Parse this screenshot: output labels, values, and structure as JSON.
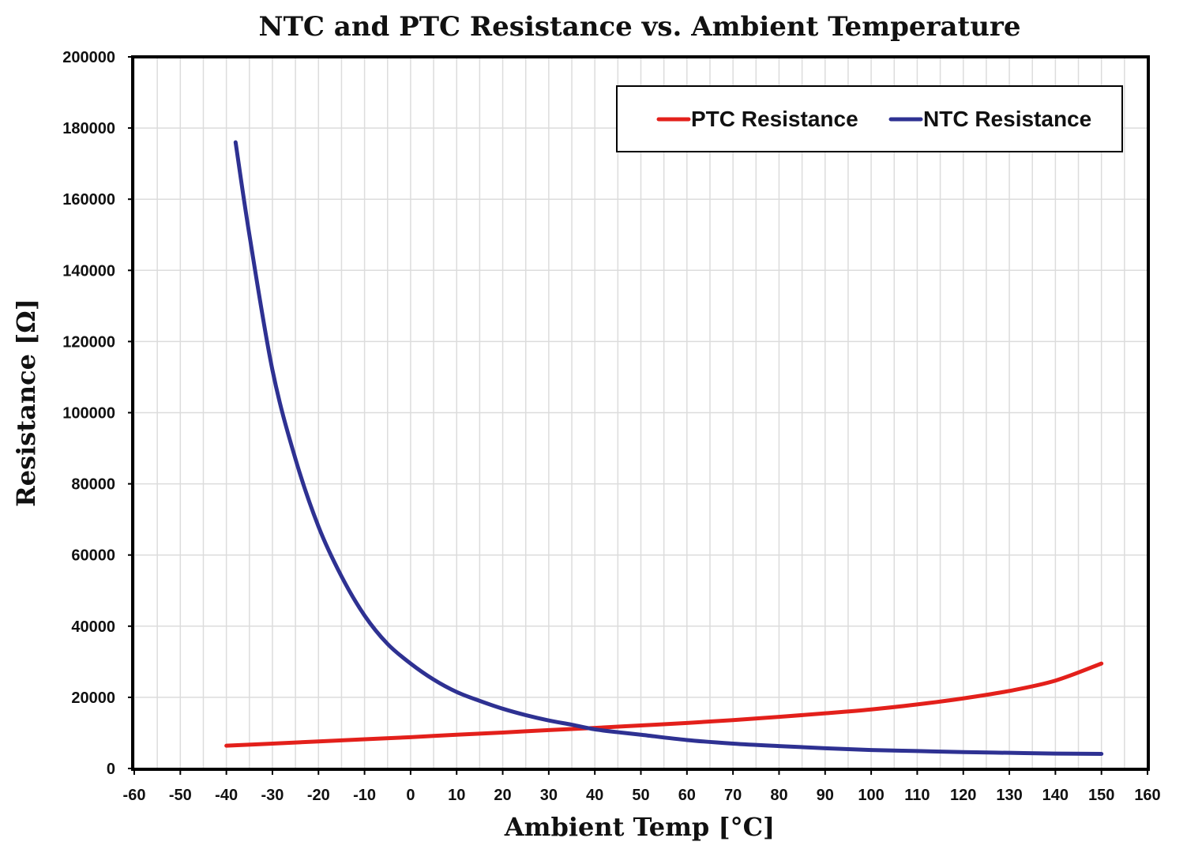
{
  "chart_data": {
    "type": "line",
    "title": "NTC and PTC Resistance vs. Ambient Temperature",
    "xlabel": "Ambient Temp [°C]",
    "ylabel": "Resistance [Ω]",
    "xlim": [
      -60,
      160
    ],
    "ylim": [
      0,
      200000
    ],
    "x_ticks": [
      -60,
      -50,
      -40,
      -30,
      -20,
      -10,
      0,
      10,
      20,
      30,
      40,
      50,
      60,
      70,
      80,
      90,
      100,
      110,
      120,
      130,
      140,
      150,
      160
    ],
    "y_ticks": [
      0,
      20000,
      40000,
      60000,
      80000,
      100000,
      120000,
      140000,
      160000,
      180000,
      200000
    ],
    "grid": true,
    "legend_position": "top-right",
    "series": [
      {
        "name": "PTC Resistance",
        "color": "#e3201b",
        "x": [
          -40,
          -30,
          -20,
          -10,
          0,
          10,
          20,
          30,
          40,
          50,
          60,
          70,
          80,
          90,
          100,
          110,
          120,
          130,
          140,
          150
        ],
        "y": [
          6400,
          7000,
          7600,
          8200,
          8800,
          9500,
          10100,
          10800,
          11400,
          12100,
          12800,
          13600,
          14500,
          15500,
          16600,
          18000,
          19700,
          21800,
          24700,
          29500
        ]
      },
      {
        "name": "NTC Resistance",
        "color": "#2e3192",
        "x": [
          -38,
          -35,
          -30,
          -25,
          -20,
          -15,
          -10,
          -5,
          0,
          5,
          10,
          15,
          20,
          25,
          30,
          35,
          40,
          45,
          50,
          60,
          70,
          80,
          90,
          100,
          110,
          120,
          130,
          140,
          150
        ],
        "y": [
          176000,
          150000,
          112000,
          87000,
          68000,
          54000,
          43000,
          35000,
          29500,
          25000,
          21500,
          19000,
          16800,
          15000,
          13500,
          12300,
          11000,
          10200,
          9500,
          8000,
          7000,
          6300,
          5700,
          5200,
          4900,
          4600,
          4400,
          4200,
          4100
        ]
      }
    ]
  }
}
